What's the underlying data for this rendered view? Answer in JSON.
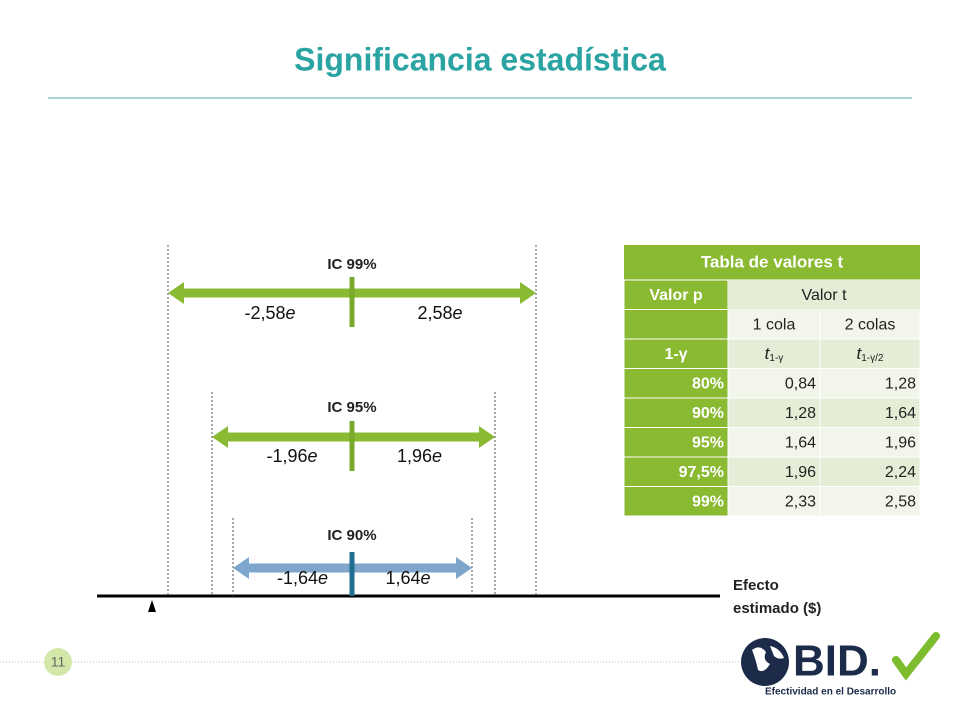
{
  "title": "Significancia estadística",
  "intervals": [
    {
      "label": "IC 99%",
      "left": {
        "number": "-2,58",
        "symbol": "e"
      },
      "right": {
        "number": "2,58",
        "symbol": "e"
      }
    },
    {
      "label": "IC 95%",
      "left": {
        "number": "-1,96",
        "symbol": "e"
      },
      "right": {
        "number": "1,96",
        "symbol": "e"
      }
    },
    {
      "label": "IC 90%",
      "left": {
        "number": "-1,64",
        "symbol": "e"
      },
      "right": {
        "number": "1,64",
        "symbol": "e"
      }
    }
  ],
  "axis_label": {
    "line1": "Efecto",
    "line2": "estimado ($)"
  },
  "table": {
    "title": "Tabla de valores t",
    "header": [
      "Valor p",
      "Valor t"
    ],
    "subheader": [
      "1 cola",
      "2 colas"
    ],
    "symbol_row": {
      "label": "1-γ",
      "col1": {
        "t": "t",
        "sub": "1-γ"
      },
      "col2": {
        "t": "t",
        "sub": "1-γ/2"
      }
    },
    "rows": [
      [
        "80%",
        "0,84",
        "1,28"
      ],
      [
        "90%",
        "1,28",
        "1,64"
      ],
      [
        "95%",
        "1,64",
        "1,96"
      ],
      [
        "97,5%",
        "1,96",
        "2,24"
      ],
      [
        "99%",
        "2,33",
        "2,58"
      ]
    ]
  },
  "page_number": "11",
  "logo": {
    "text": "BID.",
    "tagline": "Efectividad en el Desarrollo"
  }
}
